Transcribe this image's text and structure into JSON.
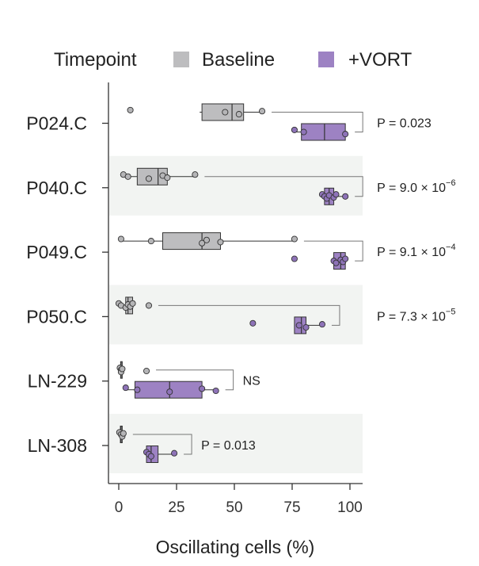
{
  "chart_data": {
    "type": "boxplot",
    "orientation": "horizontal",
    "legend": {
      "title": "Timepoint",
      "entries": [
        {
          "label": "Baseline",
          "color": "#bdbdbf"
        },
        {
          "label": "+VORT",
          "color": "#9d82c3"
        }
      ],
      "placement": "top"
    },
    "xlabel": "Oscillating cells (%)",
    "xlim": [
      -4,
      105
    ],
    "xticks": [
      "0",
      "25",
      "50",
      "75",
      "100"
    ],
    "categories": [
      "P024.C",
      "P040.C",
      "P049.C",
      "P050.C",
      "LN-229",
      "LN-308"
    ],
    "series": [
      {
        "name": "Baseline",
        "color": "#bdbdbf",
        "boxes": [
          {
            "whislo": 35,
            "q1": 36,
            "med": 49,
            "q3": 54,
            "whishi": 62,
            "fliers": [
              5
            ],
            "points": [
              5,
              46,
              52,
              62
            ]
          },
          {
            "whislo": 2,
            "q1": 8,
            "med": 17,
            "q3": 21,
            "whishi": 33,
            "fliers": [],
            "points": [
              2,
              4,
              13,
              19,
              21,
              33
            ]
          },
          {
            "whislo": 1,
            "q1": 19,
            "med": 36,
            "q3": 44,
            "whishi": 76,
            "fliers": [],
            "points": [
              1,
              14,
              36,
              38,
              44,
              76
            ]
          },
          {
            "whislo": 0,
            "q1": 3,
            "med": 4,
            "q3": 6,
            "whishi": 6,
            "fliers": [
              13
            ],
            "points": [
              0,
              1,
              3,
              4,
              5,
              6,
              13
            ]
          },
          {
            "whislo": 0.5,
            "q1": 0.8,
            "med": 1,
            "q3": 1.5,
            "whishi": 2,
            "fliers": [
              12
            ],
            "points": [
              0.5,
              1,
              1,
              1.5,
              12
            ]
          },
          {
            "whislo": 0.3,
            "q1": 0.7,
            "med": 1,
            "q3": 1.5,
            "whishi": 2,
            "fliers": [],
            "points": [
              0.3,
              1,
              1.5,
              2
            ]
          }
        ]
      },
      {
        "name": "+VORT",
        "color": "#9d82c3",
        "boxes": [
          {
            "whislo": 76,
            "q1": 79,
            "med": 89,
            "q3": 98,
            "whishi": 98,
            "fliers": [],
            "points": [
              76,
              80,
              98
            ]
          },
          {
            "whislo": 88,
            "q1": 89,
            "med": 91,
            "q3": 93,
            "whishi": 98,
            "fliers": [],
            "points": [
              88,
              89,
              90,
              91,
              93,
              94,
              98
            ]
          },
          {
            "whislo": 93,
            "q1": 93,
            "med": 96,
            "q3": 98,
            "whishi": 98,
            "fliers": [
              76
            ],
            "points": [
              76,
              93,
              94,
              96,
              97,
              98
            ]
          },
          {
            "whislo": 76,
            "q1": 76,
            "med": 79,
            "q3": 81,
            "whishi": 88,
            "fliers": [
              58
            ],
            "points": [
              58,
              78,
              81,
              88
            ]
          },
          {
            "whislo": 3,
            "q1": 7,
            "med": 22,
            "q3": 36,
            "whishi": 42,
            "fliers": [],
            "points": [
              3,
              8,
              22,
              36,
              42
            ]
          },
          {
            "whislo": 12,
            "q1": 12,
            "med": 14,
            "q3": 17,
            "whishi": 24,
            "fliers": [],
            "points": [
              12,
              13,
              14,
              24
            ]
          }
        ]
      }
    ],
    "comparisons": [
      {
        "base": "P = 0.023",
        "exp": ""
      },
      {
        "base": "P = 9.0 × 10",
        "exp": "−6"
      },
      {
        "base": "P = 9.1 × 10",
        "exp": "−4"
      },
      {
        "base": "P = 7.3 × 10",
        "exp": "−5"
      },
      {
        "base": "NS",
        "exp": ""
      },
      {
        "base": "P = 0.013",
        "exp": ""
      }
    ],
    "grid": false,
    "row_shading": "alternate"
  }
}
